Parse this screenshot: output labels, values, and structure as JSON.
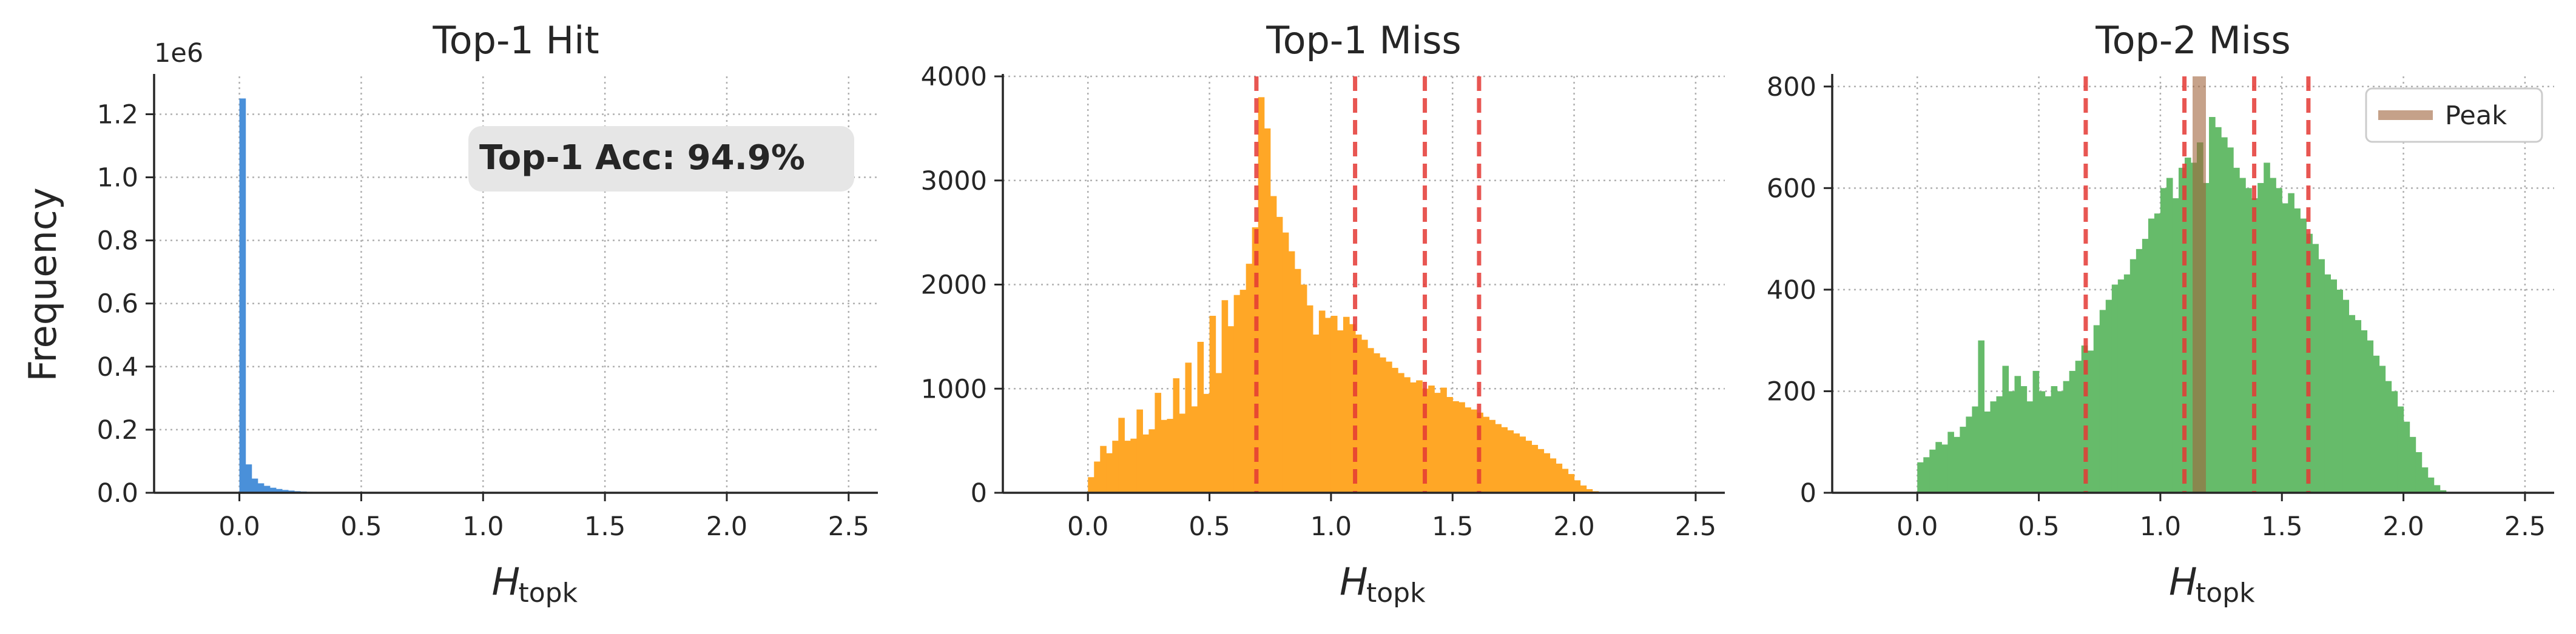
{
  "figure": {
    "ylabel": "Frequency",
    "xlabel_main": "H",
    "xlabel_sub": "topk"
  },
  "chart_data": [
    {
      "type": "bar",
      "title": "Top-1 Hit",
      "color": "#4a90d9",
      "xlim": [
        -0.35,
        2.62
      ],
      "ylim": [
        0,
        1.32
      ],
      "x_ticks": [
        0.0,
        0.5,
        1.0,
        1.5,
        2.0,
        2.5
      ],
      "y_ticks": [
        0.0,
        0.2,
        0.4,
        0.6,
        0.8,
        1.0,
        1.2
      ],
      "y_ticklabels": [
        "0.0",
        "0.2",
        "0.4",
        "0.6",
        "0.8",
        "1.0",
        "1.2"
      ],
      "y_offset_label": "1e6",
      "ylabel": "Frequency",
      "annotation": "Top-1 Acc: 94.9%",
      "bin_width": 0.025,
      "bins_start": 0.0,
      "values": [
        1.25,
        0.09,
        0.045,
        0.03,
        0.022,
        0.016,
        0.012,
        0.009,
        0.007,
        0.005,
        0.004,
        0.003,
        0.0025,
        0.002,
        0.0016,
        0.0012,
        0.001,
        0.0008,
        0.0006,
        0.0005
      ],
      "vlines": [],
      "legend": null
    },
    {
      "type": "bar",
      "title": "Top-1 Miss",
      "color": "#ffa726",
      "xlim": [
        -0.35,
        2.62
      ],
      "ylim": [
        0,
        4000
      ],
      "x_ticks": [
        0.0,
        0.5,
        1.0,
        1.5,
        2.0,
        2.5
      ],
      "y_ticks": [
        0,
        1000,
        2000,
        3000,
        4000
      ],
      "y_ticklabels": [
        "0",
        "1000",
        "2000",
        "3000",
        "4000"
      ],
      "y_offset_label": "",
      "ylabel": "",
      "annotation": "",
      "bin_width": 0.025,
      "bins_start": 0.0,
      "values": [
        150,
        300,
        450,
        380,
        500,
        720,
        500,
        520,
        800,
        560,
        610,
        960,
        700,
        710,
        1100,
        760,
        1250,
        830,
        1450,
        950,
        1700,
        1150,
        1850,
        1600,
        1900,
        1950,
        2200,
        2550,
        3800,
        3500,
        2850,
        2650,
        2500,
        2320,
        2150,
        2000,
        1800,
        1520,
        1750,
        1680,
        1700,
        1560,
        1690,
        1620,
        1520,
        1470,
        1390,
        1340,
        1300,
        1260,
        1200,
        1150,
        1110,
        1060,
        1080,
        1000,
        1030,
        960,
        1010,
        920,
        880,
        870,
        820,
        800,
        770,
        730,
        700,
        660,
        630,
        600,
        570,
        540,
        500,
        460,
        420,
        380,
        330,
        280,
        230,
        180,
        120,
        70,
        35,
        15,
        5,
        0,
        0,
        0,
        0,
        0
      ],
      "vlines": [
        0.693,
        1.099,
        1.386,
        1.609
      ],
      "legend": null
    },
    {
      "type": "bar",
      "title": "Top-2 Miss",
      "color": "#66bb6a",
      "xlim": [
        -0.35,
        2.62
      ],
      "ylim": [
        0,
        820
      ],
      "x_ticks": [
        0.0,
        0.5,
        1.0,
        1.5,
        2.0,
        2.5
      ],
      "y_ticks": [
        0,
        200,
        400,
        600,
        800
      ],
      "y_ticklabels": [
        "0",
        "200",
        "400",
        "600",
        "800"
      ],
      "y_offset_label": "",
      "ylabel": "",
      "annotation": "",
      "bin_width": 0.025,
      "bins_start": 0.0,
      "values": [
        60,
        70,
        85,
        100,
        95,
        120,
        110,
        130,
        150,
        170,
        300,
        160,
        180,
        190,
        250,
        200,
        230,
        210,
        180,
        240,
        200,
        190,
        210,
        200,
        220,
        240,
        260,
        290,
        280,
        330,
        360,
        380,
        410,
        420,
        430,
        460,
        480,
        500,
        540,
        550,
        600,
        620,
        580,
        640,
        660,
        650,
        690,
        610,
        740,
        720,
        700,
        680,
        640,
        620,
        600,
        580,
        610,
        650,
        620,
        600,
        570,
        590,
        560,
        540,
        510,
        490,
        460,
        430,
        420,
        400,
        380,
        350,
        340,
        320,
        300,
        270,
        250,
        220,
        200,
        170,
        140,
        110,
        80,
        50,
        30,
        15,
        5,
        0
      ],
      "vlines": [
        0.693,
        1.099,
        1.386,
        1.609
      ],
      "peak_line": 1.16,
      "legend": {
        "label": "Peak",
        "loc": "upper right"
      }
    }
  ]
}
